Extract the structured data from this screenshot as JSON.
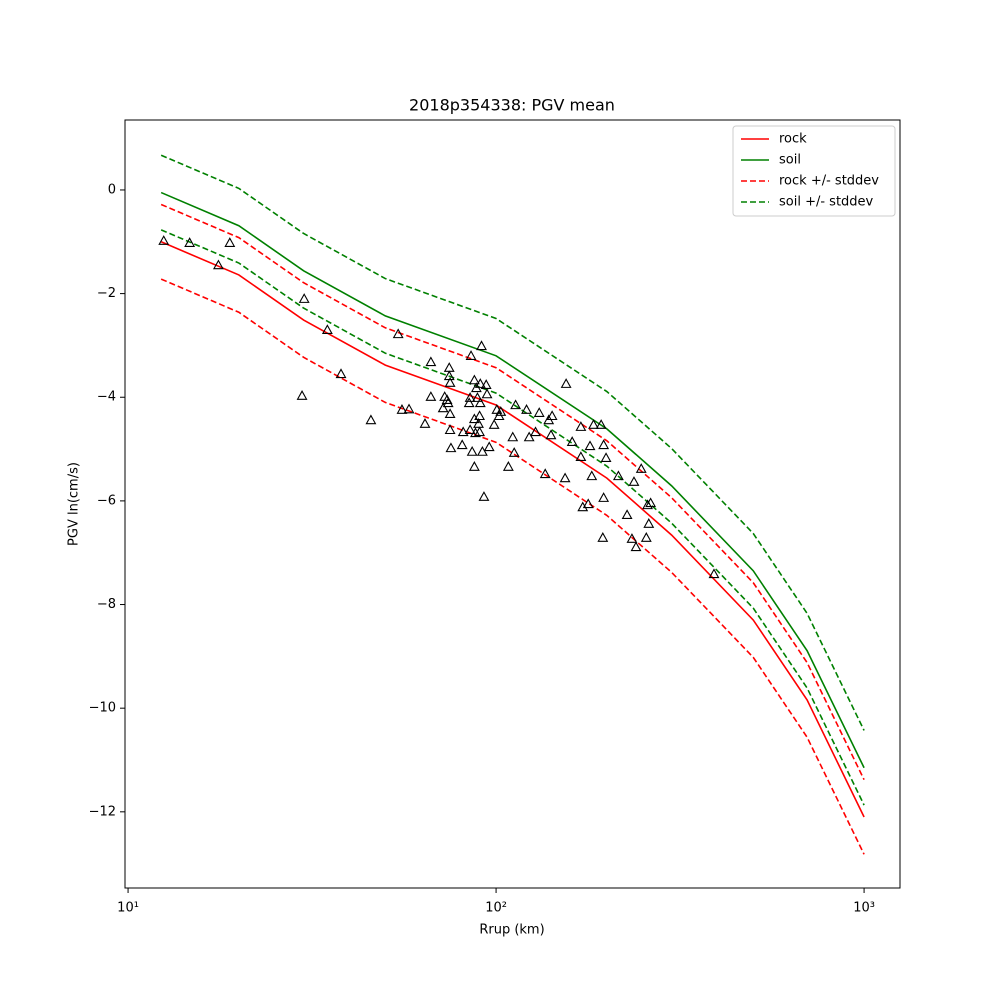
{
  "chart_data": {
    "type": "line",
    "title": "2018p354338: PGV mean",
    "x_label": "Rrup (km)",
    "y_label": "PGV ln(cm/s)",
    "xscale": "log",
    "xlim": [
      9.81,
      1252
    ],
    "ylim": [
      -13.47,
      1.35
    ],
    "xticks": [
      {
        "value": 10,
        "label": "10¹"
      },
      {
        "value": 100,
        "label": "10²"
      },
      {
        "value": 1000,
        "label": "10³"
      }
    ],
    "yticks": [
      {
        "value": -12,
        "label": "−12"
      },
      {
        "value": -10,
        "label": "−10"
      },
      {
        "value": -8,
        "label": "−8"
      },
      {
        "value": -6,
        "label": "−6"
      },
      {
        "value": -4,
        "label": "−4"
      },
      {
        "value": -2,
        "label": "−2"
      },
      0
    ],
    "legend": "upper right",
    "x": [
      12.3,
      20,
      30,
      50,
      100,
      200,
      300,
      500,
      700,
      1000
    ],
    "series": [
      {
        "name": "rock",
        "color": "#ff0000",
        "dashed": false,
        "values": [
          -1.0,
          -1.64,
          -2.51,
          -3.38,
          -4.15,
          -5.56,
          -6.66,
          -8.3,
          -9.84,
          -12.1
        ]
      },
      {
        "name": "soil",
        "color": "#008000",
        "dashed": false,
        "values": [
          -0.05,
          -0.69,
          -1.56,
          -2.43,
          -3.2,
          -4.61,
          -5.71,
          -7.35,
          -8.89,
          -11.15
        ]
      },
      {
        "name": "rock +/- stddev",
        "color": "#ff0000",
        "dashed": true,
        "values": [
          -0.28,
          -0.92,
          -1.79,
          -2.66,
          -3.43,
          -4.84,
          -5.94,
          -7.58,
          -9.12,
          -11.38
        ],
        "lower_values": [
          -1.72,
          -2.36,
          -3.23,
          -4.1,
          -4.87,
          -6.28,
          -7.38,
          -9.02,
          -10.56,
          -12.82
        ]
      },
      {
        "name": "soil +/- stddev",
        "color": "#008000",
        "dashed": true,
        "values": [
          0.67,
          0.03,
          -0.84,
          -1.71,
          -2.48,
          -3.89,
          -4.99,
          -6.63,
          -8.17,
          -10.43
        ],
        "lower_values": [
          -0.77,
          -1.41,
          -2.28,
          -3.15,
          -3.92,
          -5.33,
          -6.43,
          -8.07,
          -9.61,
          -11.87
        ]
      }
    ],
    "observations": {
      "color": "#000000",
      "marker": "triangle",
      "x": [
        12.5,
        14.7,
        17.6,
        18.9,
        30.1,
        29.7,
        34.8,
        37.9,
        45.7,
        54.2,
        55.5,
        58.0,
        64.1,
        66.5,
        66.5,
        71.8,
        72.5,
        73.6,
        74.1,
        74.6,
        74.6,
        75.0,
        75.0,
        75.0,
        75.4,
        80.9,
        81.4,
        84.5,
        85.0,
        85.0,
        85.5,
        86.1,
        87.3,
        87.3,
        87.3,
        87.9,
        88.4,
        89.0,
        89.6,
        90.2,
        90.2,
        90.6,
        90.6,
        91.3,
        91.8,
        92.7,
        94.0,
        94.5,
        95.8,
        98.8,
        100.5,
        101.9,
        103,
        108,
        111,
        112,
        113,
        121,
        123,
        128,
        131,
        136,
        139,
        141,
        142,
        154,
        155,
        161,
        170,
        170,
        172,
        178,
        180,
        182,
        184,
        193,
        195,
        196,
        196,
        199,
        215,
        227,
        234,
        237,
        240,
        248,
        256,
        258,
        260,
        263,
        391
      ],
      "values": [
        -0.98,
        -1.02,
        -1.45,
        -1.02,
        -2.1,
        -3.97,
        -2.7,
        -3.55,
        -4.44,
        -2.78,
        -4.24,
        -4.23,
        -4.51,
        -3.32,
        -3.99,
        -4.21,
        -3.99,
        -4.05,
        -4.11,
        -3.59,
        -3.43,
        -3.72,
        -4.32,
        -4.63,
        -4.98,
        -4.92,
        -4.67,
        -4.11,
        -4.63,
        -4.01,
        -3.2,
        -5.05,
        -5.34,
        -3.67,
        -4.42,
        -4.69,
        -3.82,
        -4.01,
        -4.51,
        -4.36,
        -4.67,
        -4.11,
        -3.74,
        -3.01,
        -5.05,
        -5.92,
        -3.76,
        -3.94,
        -4.96,
        -4.53,
        -4.24,
        -4.36,
        -4.28,
        -5.34,
        -4.77,
        -5.07,
        -4.15,
        -4.24,
        -4.77,
        -4.67,
        -4.3,
        -5.48,
        -4.44,
        -4.73,
        -4.36,
        -5.56,
        -3.74,
        -4.86,
        -4.57,
        -5.15,
        -6.12,
        -6.06,
        -4.94,
        -5.52,
        -4.53,
        -4.53,
        -6.71,
        -5.94,
        -4.92,
        -5.17,
        -5.52,
        -6.27,
        -6.73,
        -5.63,
        -6.89,
        -5.38,
        -6.71,
        -6.08,
        -6.44,
        -6.04,
        -7.41
      ]
    }
  }
}
